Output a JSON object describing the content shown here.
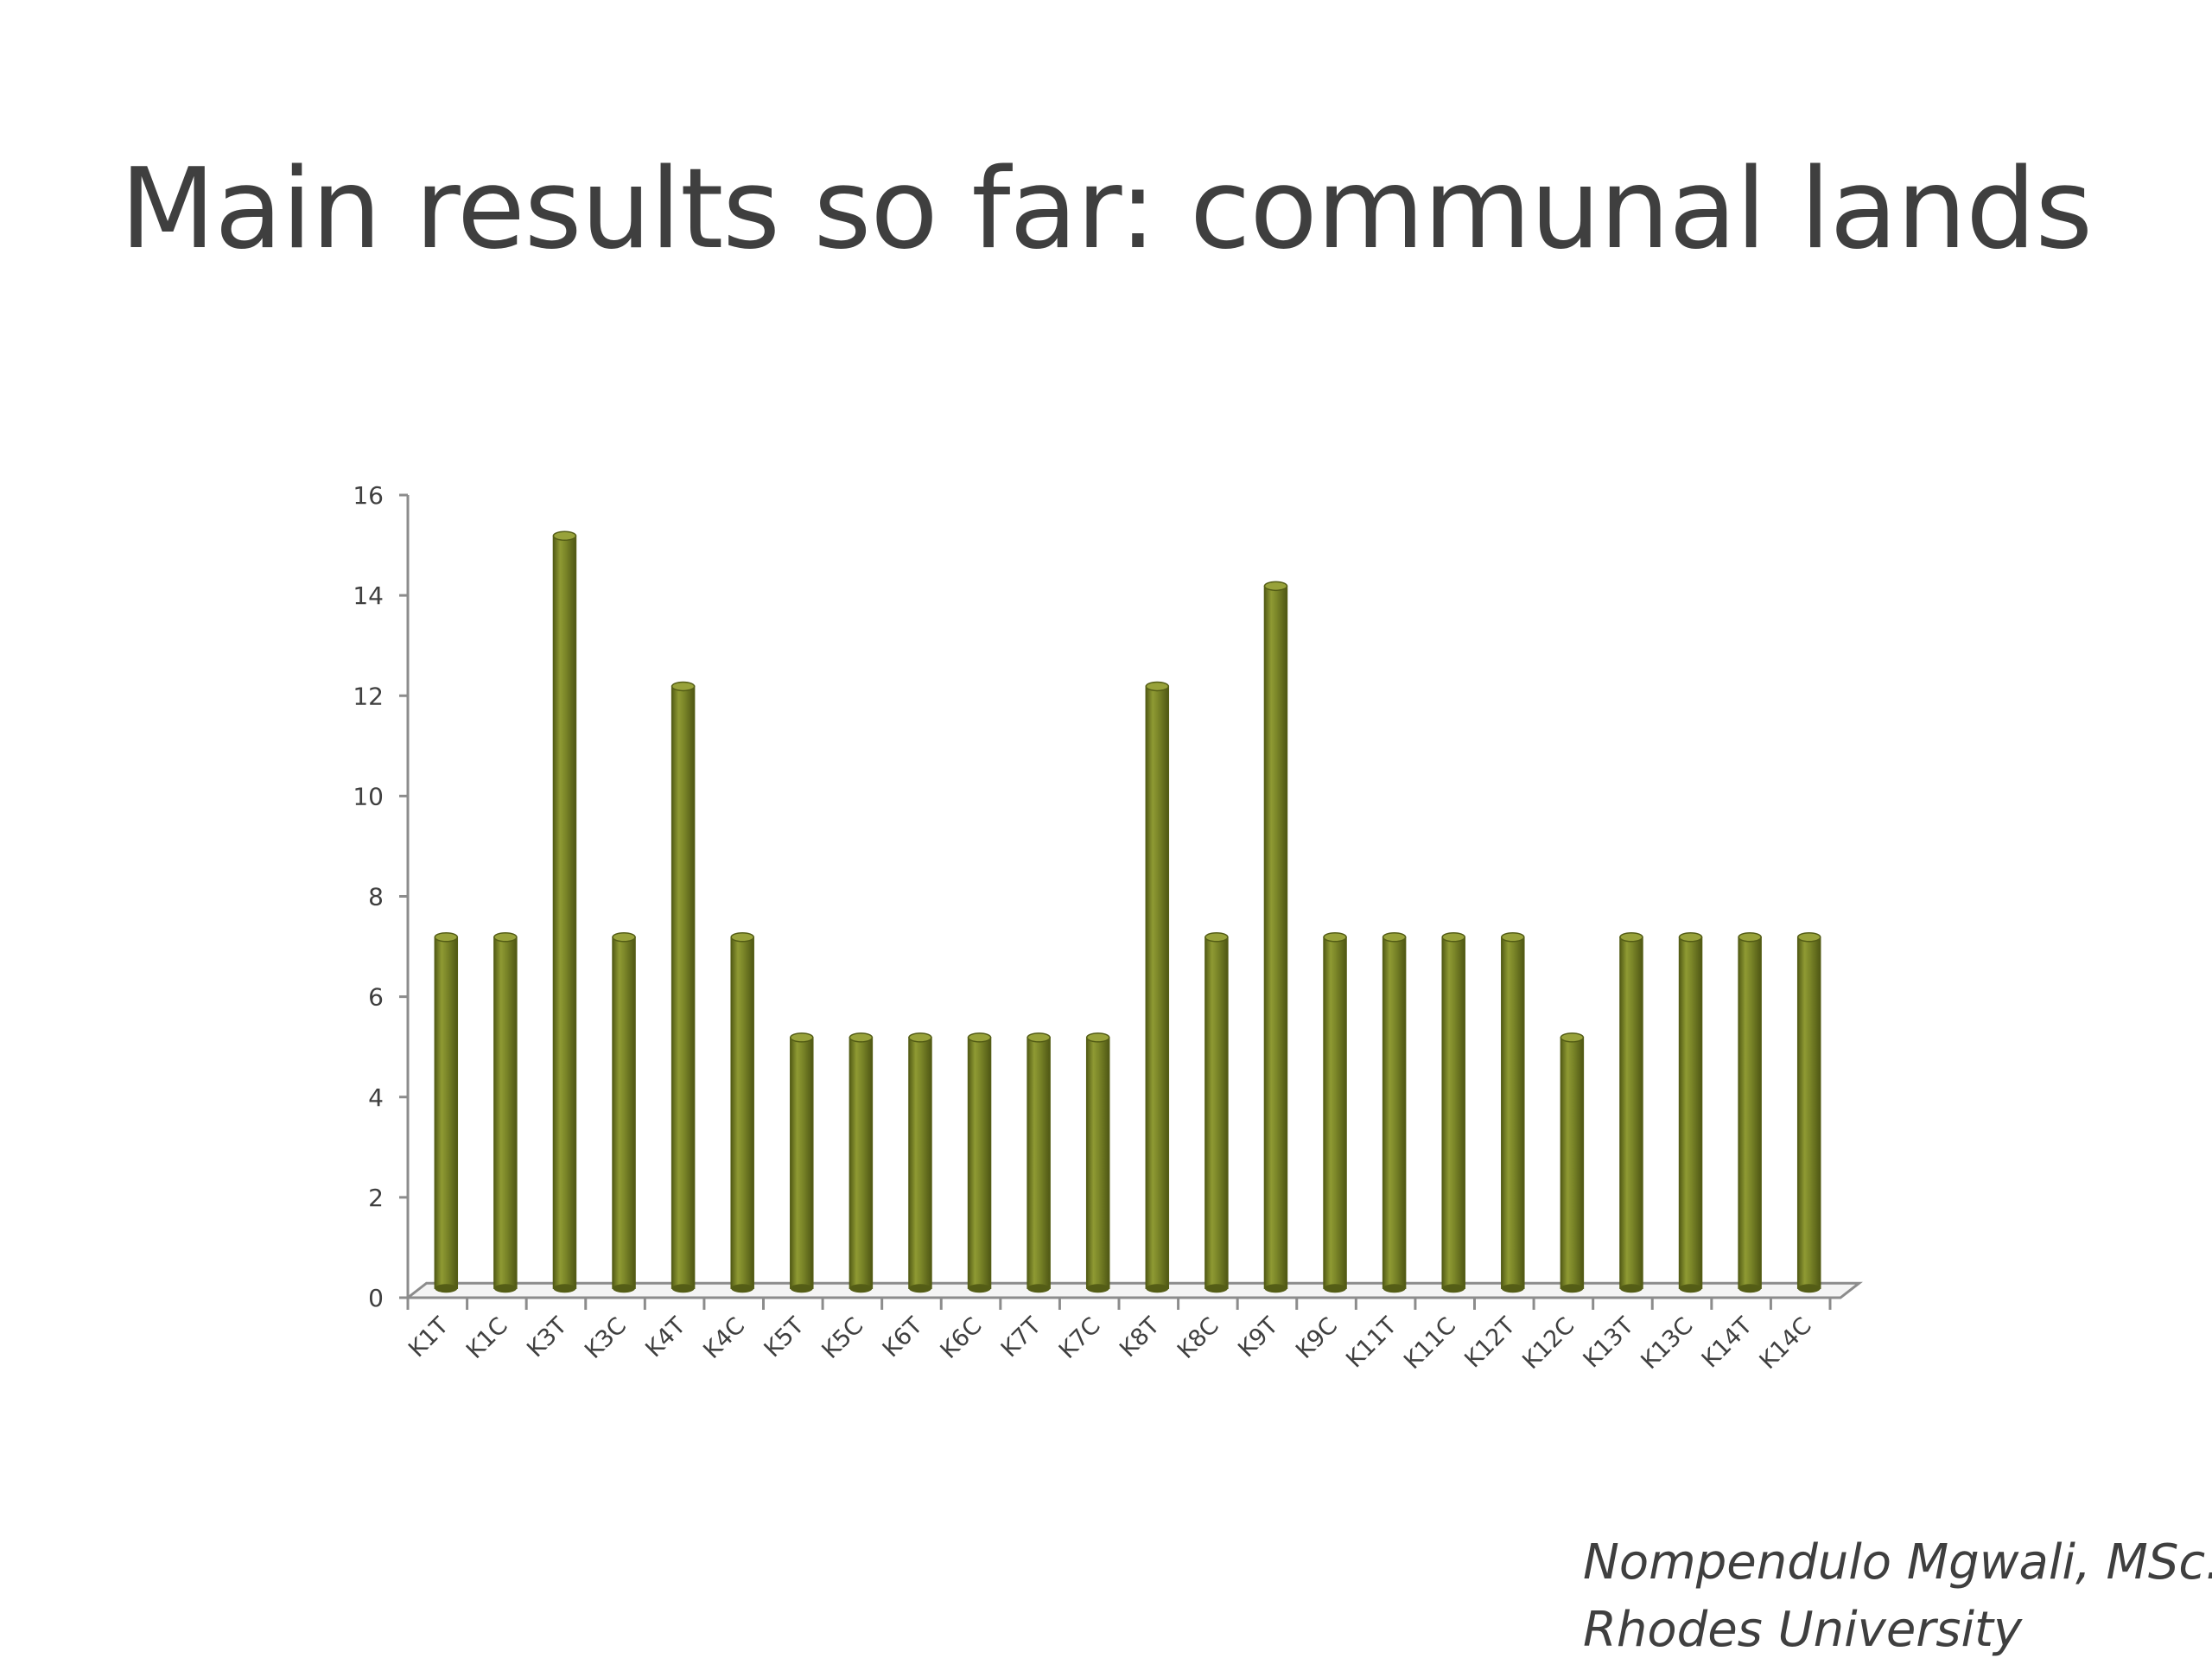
{
  "slide": {
    "title": "Main results so far: communal lands",
    "attribution_line1": "Nompendulo Mgwali, MSc.",
    "attribution_line2": "Rhodes University"
  },
  "colors": {
    "bar_fill": "#7a8528",
    "bar_light": "#a4ae44",
    "bar_dark": "#545d16",
    "bar_top": "#98a23a",
    "axis": "#8c8c8c",
    "text": "#3f3f3f"
  },
  "chart_data": {
    "type": "bar",
    "title": "",
    "xlabel": "",
    "ylabel": "",
    "ylim": [
      0,
      16
    ],
    "yticks": [
      0,
      2,
      4,
      6,
      8,
      10,
      12,
      14,
      16
    ],
    "grid": false,
    "legend": "none",
    "style": "3d-cylinder",
    "categories": [
      "K1T",
      "K1C",
      "K3T",
      "K3C",
      "K4T",
      "K4C",
      "K5T",
      "K5C",
      "K6T",
      "K6C",
      "K7T",
      "K7C",
      "K8T",
      "K8C",
      "K9T",
      "K9C",
      "K11T",
      "K11C",
      "K12T",
      "K12C",
      "K13T",
      "K13C",
      "K14T",
      "K14C"
    ],
    "values": [
      7,
      7,
      15,
      7,
      12,
      7,
      5,
      5,
      5,
      5,
      5,
      5,
      12,
      7,
      14,
      7,
      7,
      7,
      7,
      5,
      7,
      7,
      7,
      7
    ]
  }
}
